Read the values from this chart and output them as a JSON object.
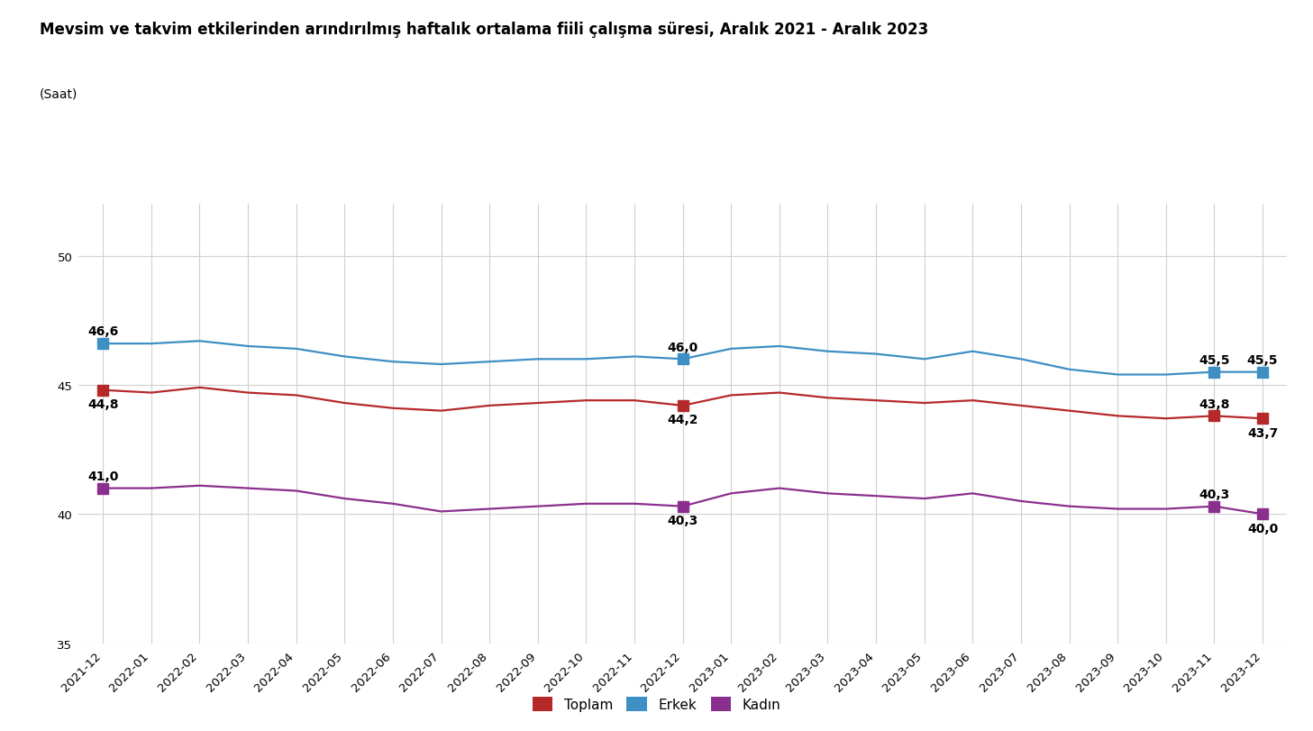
{
  "title": "Mevsim ve takvim etkilerinden arındırılmış haftalık ortalama fiili çalışma süresi, Aralık 2021 - Aralık 2023",
  "ylabel": "(Saat)",
  "ylim": [
    35,
    52
  ],
  "yticks": [
    35,
    40,
    45,
    50
  ],
  "x_labels": [
    "2021-12",
    "2022-01",
    "2022-02",
    "2022-03",
    "2022-04",
    "2022-05",
    "2022-06",
    "2022-07",
    "2022-08",
    "2022-09",
    "2022-10",
    "2022-11",
    "2022-12",
    "2023-01",
    "2023-02",
    "2023-03",
    "2023-04",
    "2023-05",
    "2023-06",
    "2023-07",
    "2023-08",
    "2023-09",
    "2023-10",
    "2023-11",
    "2023-12"
  ],
  "toplam": [
    44.8,
    44.7,
    44.9,
    44.7,
    44.6,
    44.3,
    44.1,
    44.0,
    44.2,
    44.3,
    44.4,
    44.4,
    44.2,
    44.6,
    44.7,
    44.5,
    44.4,
    44.3,
    44.4,
    44.2,
    44.0,
    43.8,
    43.7,
    43.8,
    43.7
  ],
  "erkek": [
    46.6,
    46.6,
    46.7,
    46.5,
    46.4,
    46.1,
    45.9,
    45.8,
    45.9,
    46.0,
    46.0,
    46.1,
    46.0,
    46.4,
    46.5,
    46.3,
    46.2,
    46.0,
    46.3,
    46.0,
    45.6,
    45.4,
    45.4,
    45.5,
    45.5
  ],
  "kadin": [
    41.0,
    41.0,
    41.1,
    41.0,
    40.9,
    40.6,
    40.4,
    40.1,
    40.2,
    40.3,
    40.4,
    40.4,
    40.3,
    40.8,
    41.0,
    40.8,
    40.7,
    40.6,
    40.8,
    40.5,
    40.3,
    40.2,
    40.2,
    40.3,
    40.0
  ],
  "toplam_color": "#b5292a",
  "erkek_color": "#3d8fc4",
  "kadin_color": "#8b2f8e",
  "background_color": "#ffffff",
  "grid_color": "#d0d0d0",
  "title_fontsize": 12,
  "tick_fontsize": 9.5,
  "ann_fontsize": 10,
  "legend_labels": [
    "Toplam",
    "Erkek",
    "Kadın"
  ]
}
